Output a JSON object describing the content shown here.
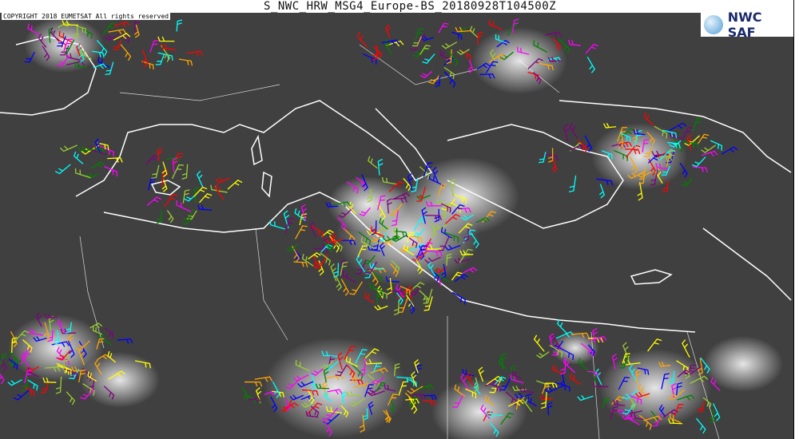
{
  "header": {
    "title": "S_NWC_HRW_MSG4_Europe-BS_20180928T104500Z"
  },
  "copyright": "COPYRIGHT 2018 EUMETSAT All rights reserved",
  "logo": {
    "text": "NWC SAF"
  },
  "colors": {
    "background_land": "#3a3a3a",
    "coastline": "#ffffff",
    "clouds": "#e8e8e8"
  },
  "wind_barb_colors": [
    "#0000ff",
    "#00ffff",
    "#008000",
    "#9acd32",
    "#ffff00",
    "#ffa500",
    "#ff0000",
    "#ff00ff",
    "#800080"
  ],
  "map_type": "satellite image with high resolution wind barbs"
}
